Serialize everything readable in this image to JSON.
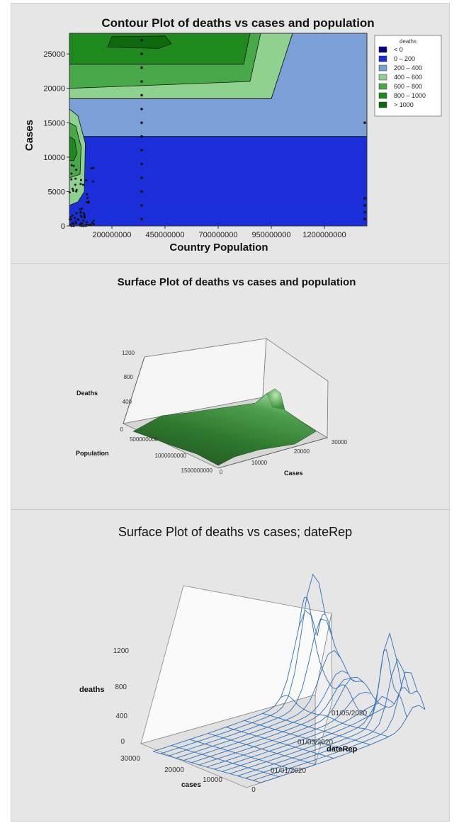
{
  "chart_data": [
    {
      "type": "contour",
      "title": "Contour Plot of deaths vs cases and population",
      "xlabel": "Country Population",
      "ylabel": "Cases",
      "xlim": [
        0,
        1400000000
      ],
      "ylim": [
        0,
        28000
      ],
      "x_ticks": [
        "200000000",
        "450000000",
        "700000000",
        "950000000",
        "1200000000"
      ],
      "x_tick_values": [
        200000000,
        450000000,
        700000000,
        950000000,
        1200000000
      ],
      "y_ticks": [
        "0",
        "5000",
        "10000",
        "15000",
        "20000",
        "25000"
      ],
      "y_tick_values": [
        0,
        5000,
        10000,
        15000,
        20000,
        25000
      ],
      "legend": {
        "title": "deaths",
        "position": "right",
        "entries": [
          {
            "label": "< 0",
            "color": "#000080"
          },
          {
            "label": "0 – 200",
            "color": "#1a2ed9"
          },
          {
            "label": "200 – 400",
            "color": "#7ba0d8"
          },
          {
            "label": "400 – 600",
            "color": "#8fd18f"
          },
          {
            "label": "600 – 800",
            "color": "#47a947"
          },
          {
            "label": "800 – 1000",
            "color": "#1e8a1e"
          },
          {
            "label": "> 1000",
            "color": "#0d6b0d"
          }
        ]
      },
      "regions": [
        {
          "level": "0 – 200",
          "boundary": [
            [
              0,
              0
            ],
            [
              0,
              13000
            ],
            [
              1400000000,
              13000
            ],
            [
              1400000000,
              0
            ]
          ]
        },
        {
          "level": "200 – 400",
          "boundary": [
            [
              0,
              13000
            ],
            [
              0,
              18500
            ],
            [
              950000000,
              18500
            ],
            [
              1050000000,
              28000
            ],
            [
              1400000000,
              28000
            ],
            [
              1400000000,
              13000
            ]
          ]
        },
        {
          "level": "400 – 600",
          "boundary": [
            [
              0,
              18500
            ],
            [
              0,
              28000
            ],
            [
              1050000000,
              28000
            ],
            [
              950000000,
              18500
            ]
          ]
        },
        {
          "level": "600 – 800",
          "boundary": [
            [
              0,
              20000
            ],
            [
              0,
              28000
            ],
            [
              900000000,
              28000
            ],
            [
              850000000,
              21000
            ]
          ]
        },
        {
          "level": "800 – 1000",
          "boundary": [
            [
              0,
              23500
            ],
            [
              0,
              28000
            ],
            [
              850000000,
              28000
            ],
            [
              820000000,
              23500
            ]
          ]
        },
        {
          "level": "> 1000",
          "boundary": [
            [
              180000000,
              26000
            ],
            [
              200000000,
              27500
            ],
            [
              450000000,
              27600
            ],
            [
              480000000,
              26500
            ],
            [
              420000000,
              25800
            ]
          ]
        }
      ],
      "points": {
        "columns": [
          {
            "x": 340000000,
            "y": [
              1000,
              3000,
              5000,
              7000,
              9000,
              11000,
              13000,
              15000,
              17000,
              19000,
              21000,
              23000,
              25000,
              27000
            ]
          },
          {
            "x": 1390000000,
            "y": [
              1000,
              2000,
              3000,
              4000,
              15000
            ]
          }
        ],
        "cluster": {
          "x_range": [
            0,
            120000000
          ],
          "y_range": [
            0,
            9000
          ]
        }
      }
    },
    {
      "type": "surface",
      "title": "Surface Plot of deaths vs cases and population",
      "xlabel": "Cases",
      "ylabel": "Population",
      "zlabel": "Deaths",
      "x_ticks": [
        "0",
        "10000",
        "20000",
        "30000"
      ],
      "y_ticks": [
        "500000000",
        "1000000000",
        "1500000000"
      ],
      "z_ticks": [
        "0",
        "400",
        "800",
        "1200"
      ],
      "zlim": [
        0,
        1200
      ],
      "peak": {
        "cases": 27000,
        "population": 50000000,
        "deaths": 420
      }
    },
    {
      "type": "surface",
      "title": "Surface Plot of deaths vs cases; dateRep",
      "xlabel": "cases",
      "ylabel": "dateRep",
      "zlabel": "deaths",
      "x_ticks": [
        "30000",
        "20000",
        "10000",
        "0"
      ],
      "y_ticks": [
        "01/01/2020",
        "01/03/2020",
        "01/05/2020"
      ],
      "z_ticks": [
        "0",
        "400",
        "800",
        "1200"
      ],
      "zlim": [
        0,
        1200
      ],
      "peaks": [
        {
          "cases": 27000,
          "dateRep": "01/05/2020",
          "deaths": 1350
        },
        {
          "cases": 20000,
          "dateRep": "01/05/2020",
          "deaths": 450
        },
        {
          "cases": 6000,
          "dateRep": "01/05/2020",
          "deaths": 1000
        },
        {
          "cases": 2000,
          "dateRep": "01/05/2020",
          "deaths": 600
        }
      ]
    }
  ]
}
